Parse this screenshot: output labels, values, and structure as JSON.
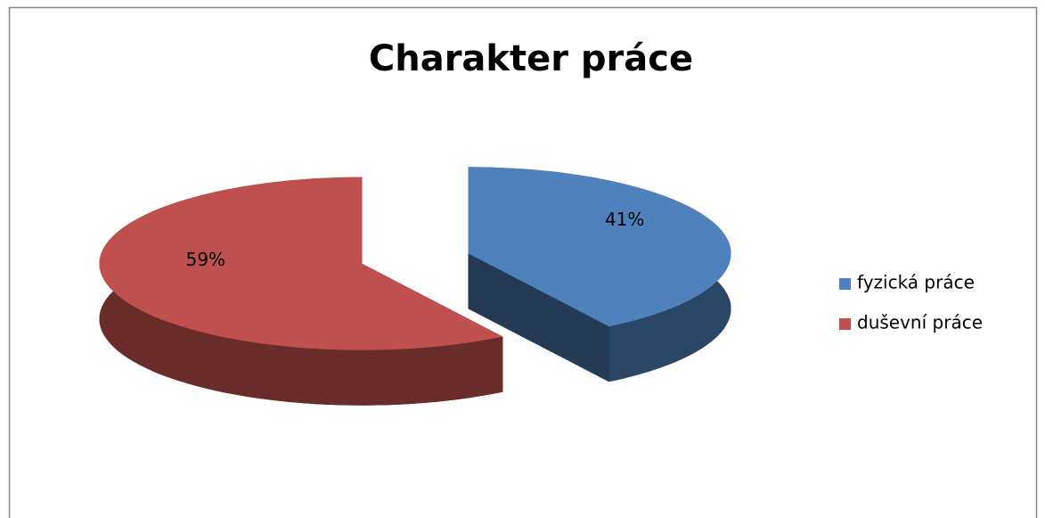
{
  "chart_data": {
    "type": "pie",
    "title": "Charakter práce",
    "categories": [
      "fyzická práce",
      "duševní práce"
    ],
    "values": [
      41,
      59
    ],
    "value_labels": [
      "41%",
      "59%"
    ],
    "colors": [
      "#4f81bd",
      "#c0504d"
    ],
    "legend": "right",
    "3d": true,
    "exploded": true
  }
}
